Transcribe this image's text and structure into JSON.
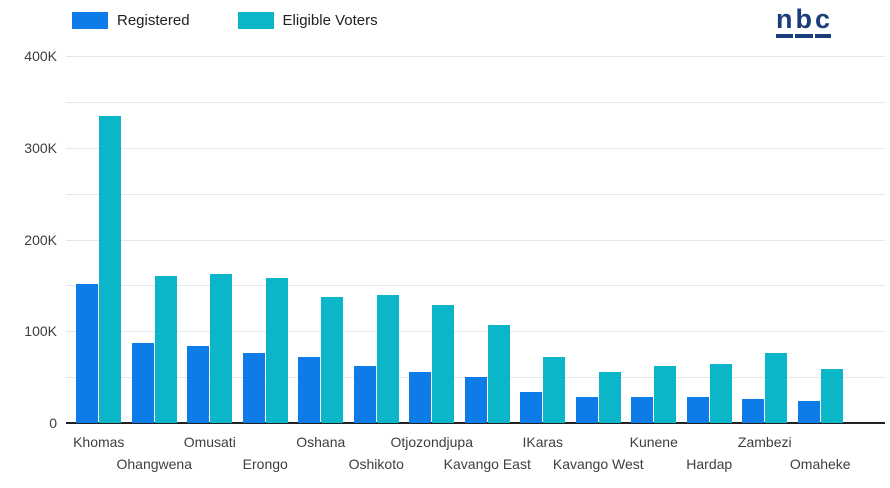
{
  "legend": {
    "items": [
      {
        "label": "Registered",
        "color": "#0d7ce8"
      },
      {
        "label": "Eligible Voters",
        "color": "#0cb6c9"
      }
    ]
  },
  "logo": {
    "text": "nbc",
    "letters": [
      "n",
      "b",
      "c"
    ],
    "color": "#1b3d7c"
  },
  "colors": {
    "background": "#ffffff",
    "gridline": "#e6e6e6",
    "baseline": "#212121",
    "axis_text": "#3c4043",
    "registered_blue": "#0d7ce8",
    "eligible_teal": "#0cb6c9"
  },
  "y_axis": {
    "tick_labels": [
      "400K",
      "300K",
      "200K",
      "100K",
      "0"
    ]
  },
  "chart_data": {
    "type": "bar",
    "title": "",
    "xlabel": "",
    "ylabel": "",
    "ylim": [
      0,
      400000
    ],
    "gridline_interval": 50000,
    "label_interval": 100000,
    "grid": true,
    "legend_position": "top-left",
    "categories": [
      "Khomas",
      "Ohangwena",
      "Omusati",
      "Erongo",
      "Oshana",
      "Oshikoto",
      "Otjozondjupa",
      "Kavango East",
      "IKaras",
      "Kavango West",
      "Kunene",
      "Hardap",
      "Zambezi",
      "Omaheke"
    ],
    "series": [
      {
        "name": "Registered",
        "color": "#0d7ce8",
        "values": [
          152000,
          87000,
          84000,
          76000,
          72000,
          62000,
          56000,
          50000,
          34000,
          28000,
          28000,
          28000,
          26000,
          24000
        ]
      },
      {
        "name": "Eligible Voters",
        "color": "#0cb6c9",
        "values": [
          335000,
          160000,
          162000,
          158000,
          137000,
          140000,
          129000,
          107000,
          72000,
          56000,
          62000,
          64000,
          76000,
          59000
        ]
      }
    ]
  }
}
